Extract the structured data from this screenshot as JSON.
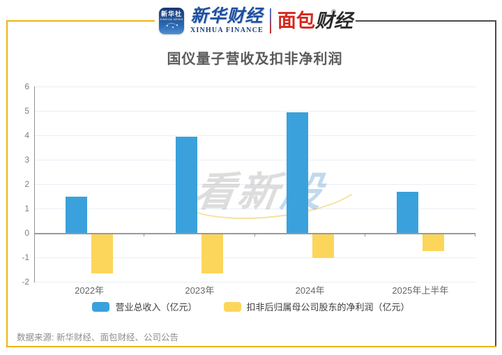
{
  "header": {
    "xinhua_news_badge": {
      "line1": "新华社",
      "line2": "XINHUA NEWS"
    },
    "xinhua_finance": {
      "cn": "新华财经",
      "en": "XINHUA FINANCE"
    },
    "bread_finance": {
      "cn_red": "面包",
      "cn_dark": "财经",
      "reg_mark": "®"
    }
  },
  "title": "国仪量子营收及扣非净利润",
  "watermark": {
    "gray_part": "看新",
    "blue_part": "股"
  },
  "source_note": "数据来源: 新华财经、面包财经、公司公告",
  "colors": {
    "revenue_bar": "#3AA1DC",
    "profit_bar": "#FBD65B",
    "frame_yellow": "#EDB417",
    "frame_dark": "#4A4A4A"
  },
  "chart_data": {
    "type": "bar",
    "title": "国仪量子营收及扣非净利润",
    "categories": [
      "2022年",
      "2023年",
      "2024年",
      "2025年上半年"
    ],
    "series": [
      {
        "name": "营业总收入（亿元）",
        "color": "#3AA1DC",
        "values": [
          1.5,
          3.95,
          4.95,
          1.7
        ]
      },
      {
        "name": "扣非后归属母公司股东的净利润（亿元）",
        "color": "#FBD65B",
        "values": [
          -1.65,
          -1.66,
          -1.04,
          -0.75
        ]
      }
    ],
    "ylabel": "",
    "xlabel": "",
    "ylim": [
      -2,
      6
    ],
    "y_ticks": [
      6,
      5,
      4,
      3,
      2,
      1,
      0,
      -1,
      -2
    ],
    "grid": true,
    "legend_position": "bottom"
  }
}
